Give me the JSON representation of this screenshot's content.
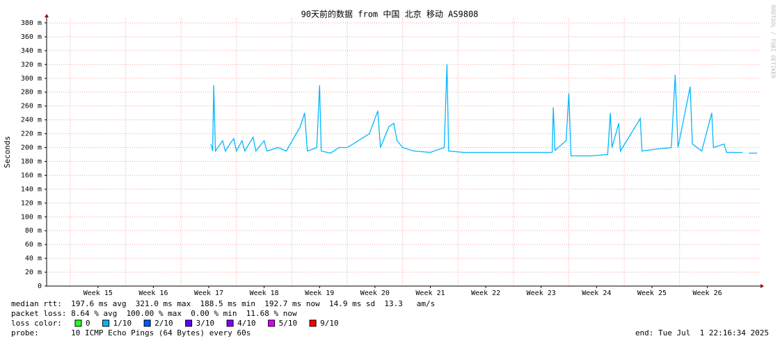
{
  "chart_data": {
    "type": "line",
    "title": "90天前的数据 from 中国 北京 移动 AS9808",
    "y_label": "Seconds",
    "watermark": "RRDTOOL / TOBI OETIKER",
    "xlim": [
      14.573,
      27.46
    ],
    "xticks": [
      {
        "value": 15.5,
        "label": "Week 15"
      },
      {
        "value": 16.5,
        "label": "Week 16"
      },
      {
        "value": 17.5,
        "label": "Week 17"
      },
      {
        "value": 18.5,
        "label": "Week 18"
      },
      {
        "value": 19.5,
        "label": "Week 19"
      },
      {
        "value": 20.5,
        "label": "Week 20"
      },
      {
        "value": 21.5,
        "label": "Week 21"
      },
      {
        "value": 22.5,
        "label": "Week 22"
      },
      {
        "value": 23.5,
        "label": "Week 23"
      },
      {
        "value": 24.5,
        "label": "Week 24"
      },
      {
        "value": 25.5,
        "label": "Week 25"
      },
      {
        "value": 26.5,
        "label": "Week 26"
      }
    ],
    "ylim": [
      0,
      0.38
    ],
    "yticks": [
      0,
      {
        "value": 0.02,
        "label": "20 m"
      },
      {
        "value": 0.04,
        "label": "40 m"
      },
      {
        "value": 0.06,
        "label": "60 m"
      },
      {
        "value": 0.08,
        "label": "80 m"
      },
      {
        "value": 0.1,
        "label": "100 m"
      },
      {
        "value": 0.12,
        "label": "120 m"
      },
      {
        "value": 0.14,
        "label": "140 m"
      },
      {
        "value": 0.16,
        "label": "160 m"
      },
      {
        "value": 0.18,
        "label": "180 m"
      },
      {
        "value": 0.2,
        "label": "200 m"
      },
      {
        "value": 0.22,
        "label": "220 m"
      },
      {
        "value": 0.24,
        "label": "240 m"
      },
      {
        "value": 0.26,
        "label": "260 m"
      },
      {
        "value": 0.28,
        "label": "280 m"
      },
      {
        "value": 0.3,
        "label": "300 m"
      },
      {
        "value": 0.32,
        "label": "320 m"
      },
      {
        "value": 0.34,
        "label": "340 m"
      },
      {
        "value": 0.36,
        "label": "360 m"
      },
      {
        "value": 0.38,
        "label": "380 m"
      }
    ],
    "grid": true,
    "series": [
      {
        "color": "#00b8ff",
        "x": [
          17.54,
          17.57,
          17.59,
          17.62,
          17.75,
          17.8,
          17.88,
          17.95,
          18.0,
          18.1,
          18.15,
          18.3,
          18.35,
          18.5,
          18.55,
          18.75,
          18.9,
          19.15,
          19.23,
          19.28,
          19.45,
          19.5,
          19.53,
          19.7,
          19.85,
          20.0,
          20.2,
          20.4,
          20.55,
          20.6,
          20.75,
          20.84,
          20.9,
          21.0,
          21.2,
          21.5,
          21.75,
          21.8,
          21.83,
          22.1,
          22.5,
          23.0,
          23.5,
          23.7,
          23.72,
          23.75,
          23.95,
          24.0,
          24.04,
          24.4,
          24.7,
          24.75,
          24.78,
          24.9,
          24.93,
          25.29,
          25.32,
          25.6,
          25.85,
          25.92,
          25.97,
          26.19,
          26.23,
          26.4,
          26.58,
          26.61,
          26.8,
          26.85,
          27.14,
          27.2,
          27.25,
          27.4
        ],
        "values": [
          0.205,
          0.195,
          0.29,
          0.195,
          0.21,
          0.195,
          0.205,
          0.213,
          0.195,
          0.21,
          0.195,
          0.215,
          0.195,
          0.21,
          0.195,
          0.2,
          0.195,
          0.23,
          0.25,
          0.195,
          0.2,
          0.29,
          0.195,
          0.192,
          0.2,
          0.2,
          0.21,
          0.22,
          0.253,
          0.2,
          0.23,
          0.235,
          0.21,
          0.2,
          0.195,
          0.193,
          0.2,
          0.32,
          0.195,
          0.193,
          0.193,
          0.193,
          0.193,
          0.193,
          0.258,
          0.196,
          0.21,
          0.278,
          0.188,
          0.188,
          0.19,
          0.25,
          0.2,
          0.235,
          0.195,
          0.242,
          0.195,
          0.198,
          0.2,
          0.305,
          0.2,
          0.288,
          0.205,
          0.195,
          0.25,
          0.2,
          0.205,
          0.193,
          0.193,
          null,
          0.192,
          0.192
        ]
      }
    ],
    "stats": [
      "median rtt:  197.6 ms avg  321.0 ms max  188.5 ms min  192.7 ms now  14.9 ms sd  13.3   am/s",
      "packet loss: 8.64 % avg  100.00 % max  0.00 % min  11.68 % now"
    ],
    "loss_label": "loss color:",
    "loss_colors": [
      {
        "label": "0",
        "color": "#26ff26"
      },
      {
        "label": "1/10",
        "color": "#00b8ff"
      },
      {
        "label": "2/10",
        "color": "#0059ff"
      },
      {
        "label": "3/10",
        "color": "#5e00ff"
      },
      {
        "label": "4/10",
        "color": "#7e00ff"
      },
      {
        "label": "5/10",
        "color": "#dd00ff"
      },
      {
        "label": "9/10",
        "color": "#ff0000"
      }
    ],
    "probe": "probe:       10 ICMP Echo Pings (64 Bytes) every 60s",
    "end": "end: Tue Jul  1 22:16:34 2025"
  }
}
